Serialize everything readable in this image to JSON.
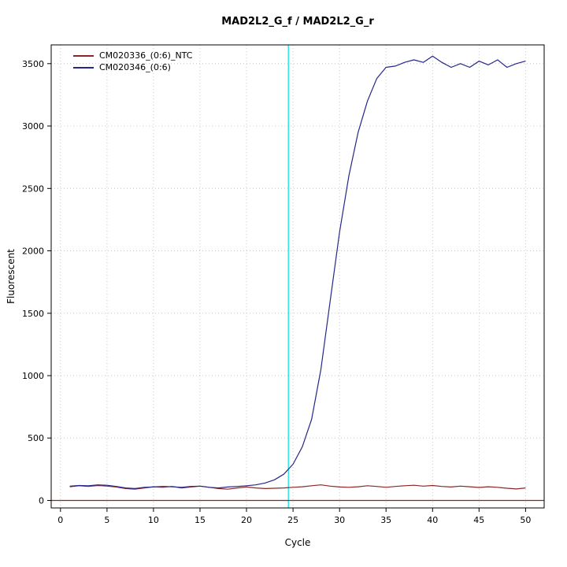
{
  "chart_data": {
    "type": "line",
    "title": "MAD2L2_G_f / MAD2L2_G_r",
    "xlabel": "Cycle",
    "ylabel": "Fluorescent",
    "xlim": [
      -1,
      52
    ],
    "ylim": [
      -60,
      3650
    ],
    "xticks": [
      0,
      5,
      10,
      15,
      20,
      25,
      30,
      35,
      40,
      45,
      50
    ],
    "yticks": [
      0,
      500,
      1000,
      1500,
      2000,
      2500,
      3000,
      3500
    ],
    "grid": true,
    "grid_color": "#c8c8c8",
    "threshold_cycle": 24.5,
    "threshold_color": "#00e0e0",
    "baseline_value": 0,
    "baseline_color": "#8b2626",
    "legend_position": "top-left",
    "x": [
      1,
      2,
      3,
      4,
      5,
      6,
      7,
      8,
      9,
      10,
      11,
      12,
      13,
      14,
      15,
      16,
      17,
      18,
      19,
      20,
      21,
      22,
      23,
      24,
      25,
      26,
      27,
      28,
      29,
      30,
      31,
      32,
      33,
      34,
      35,
      36,
      37,
      38,
      39,
      40,
      41,
      42,
      43,
      44,
      45,
      46,
      47,
      48,
      49,
      50
    ],
    "series": [
      {
        "name": "CM020336_(0:6)_NTC",
        "color": "#8b2626",
        "values": [
          110,
          118,
          112,
          120,
          115,
          108,
          95,
          90,
          100,
          110,
          105,
          112,
          100,
          108,
          115,
          105,
          95,
          90,
          100,
          108,
          100,
          95,
          98,
          100,
          105,
          110,
          118,
          125,
          115,
          108,
          105,
          110,
          118,
          112,
          105,
          112,
          118,
          122,
          115,
          120,
          112,
          108,
          115,
          110,
          104,
          110,
          105,
          98,
          92,
          100
        ]
      },
      {
        "name": "CM020346_(0:6)",
        "color": "#26268b",
        "values": [
          115,
          120,
          118,
          125,
          122,
          112,
          100,
          95,
          105,
          108,
          112,
          110,
          105,
          112,
          115,
          105,
          100,
          108,
          112,
          118,
          125,
          140,
          165,
          210,
          290,
          430,
          650,
          1050,
          1600,
          2150,
          2600,
          2950,
          3200,
          3380,
          3470,
          3480,
          3510,
          3530,
          3510,
          3560,
          3510,
          3470,
          3500,
          3470,
          3520,
          3490,
          3530,
          3470,
          3500,
          3520
        ]
      }
    ]
  }
}
